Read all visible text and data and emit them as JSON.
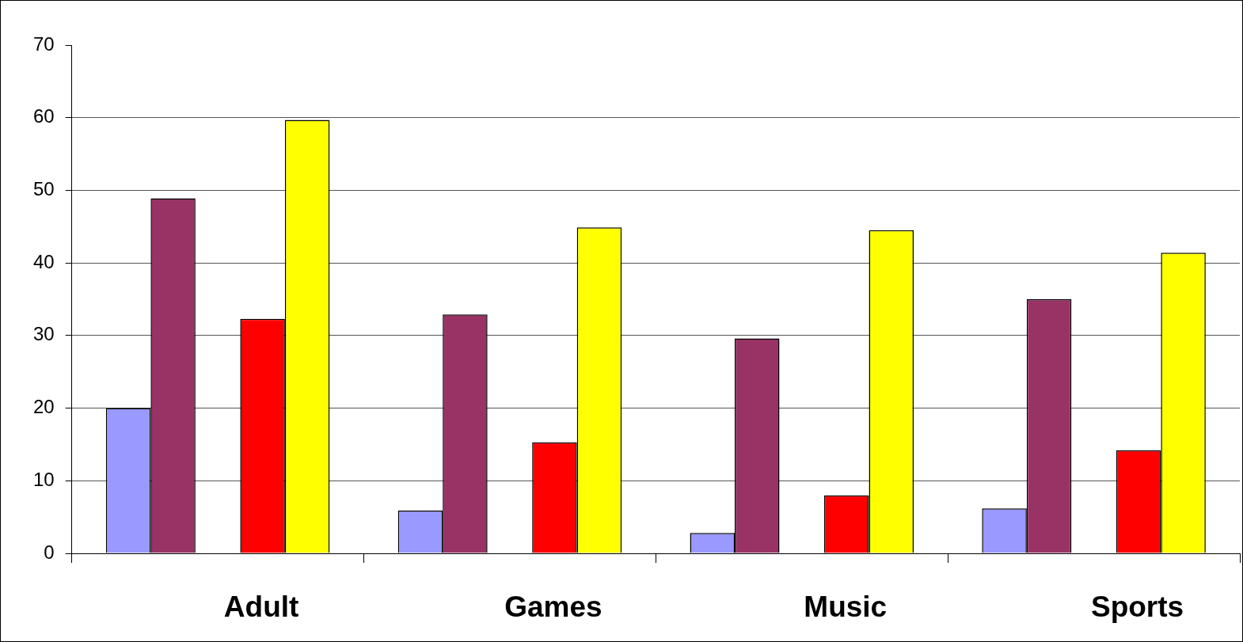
{
  "chart_data": {
    "type": "bar",
    "categories": [
      "Adult",
      "Games",
      "Music",
      "Sports"
    ],
    "series": [
      {
        "color": "#9999ff",
        "values": [
          20,
          5.9,
          2.8,
          6.2
        ]
      },
      {
        "color": "#993366",
        "values": [
          48.9,
          32.9,
          29.6,
          35.0
        ]
      },
      {
        "values": [
          null,
          null,
          null,
          null
        ]
      },
      {
        "color": "#ff0000",
        "values": [
          32.3,
          15.3,
          8.0,
          14.2
        ]
      },
      {
        "color": "#ffff00",
        "values": [
          59.7,
          44.9,
          44.5,
          41.4
        ]
      }
    ],
    "ylim": [
      0,
      70
    ],
    "yticks": [
      0,
      10,
      20,
      30,
      40,
      50,
      60,
      70
    ],
    "grid": "y"
  }
}
